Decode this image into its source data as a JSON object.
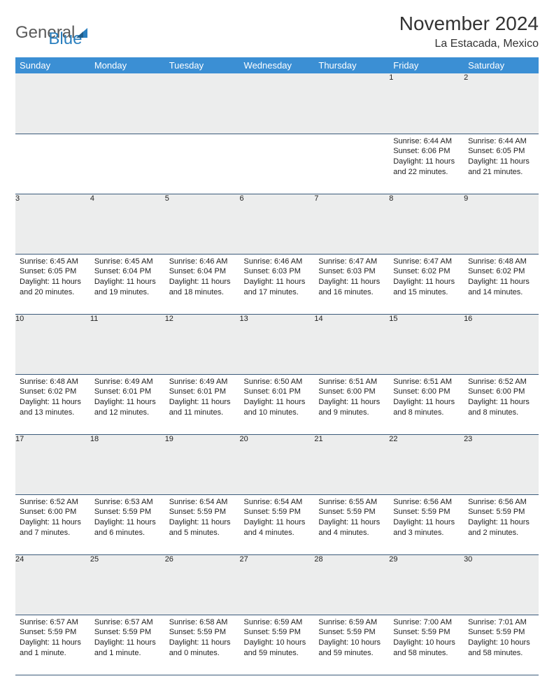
{
  "logo": {
    "text1": "General",
    "text2": "Blue"
  },
  "title": "November 2024",
  "subtitle": "La Estacada, Mexico",
  "colors": {
    "header_bg": "#3b8fd4",
    "header_text": "#ffffff",
    "daynum_bg": "#eceded",
    "border": "#3b5a7a",
    "logo_gray": "#5a5a5a",
    "logo_blue": "#2a7fbf"
  },
  "weekdays": [
    "Sunday",
    "Monday",
    "Tuesday",
    "Wednesday",
    "Thursday",
    "Friday",
    "Saturday"
  ],
  "weeks": [
    [
      {
        "n": "",
        "sr": "",
        "ss": "",
        "dl": ""
      },
      {
        "n": "",
        "sr": "",
        "ss": "",
        "dl": ""
      },
      {
        "n": "",
        "sr": "",
        "ss": "",
        "dl": ""
      },
      {
        "n": "",
        "sr": "",
        "ss": "",
        "dl": ""
      },
      {
        "n": "",
        "sr": "",
        "ss": "",
        "dl": ""
      },
      {
        "n": "1",
        "sr": "Sunrise: 6:44 AM",
        "ss": "Sunset: 6:06 PM",
        "dl": "Daylight: 11 hours and 22 minutes."
      },
      {
        "n": "2",
        "sr": "Sunrise: 6:44 AM",
        "ss": "Sunset: 6:05 PM",
        "dl": "Daylight: 11 hours and 21 minutes."
      }
    ],
    [
      {
        "n": "3",
        "sr": "Sunrise: 6:45 AM",
        "ss": "Sunset: 6:05 PM",
        "dl": "Daylight: 11 hours and 20 minutes."
      },
      {
        "n": "4",
        "sr": "Sunrise: 6:45 AM",
        "ss": "Sunset: 6:04 PM",
        "dl": "Daylight: 11 hours and 19 minutes."
      },
      {
        "n": "5",
        "sr": "Sunrise: 6:46 AM",
        "ss": "Sunset: 6:04 PM",
        "dl": "Daylight: 11 hours and 18 minutes."
      },
      {
        "n": "6",
        "sr": "Sunrise: 6:46 AM",
        "ss": "Sunset: 6:03 PM",
        "dl": "Daylight: 11 hours and 17 minutes."
      },
      {
        "n": "7",
        "sr": "Sunrise: 6:47 AM",
        "ss": "Sunset: 6:03 PM",
        "dl": "Daylight: 11 hours and 16 minutes."
      },
      {
        "n": "8",
        "sr": "Sunrise: 6:47 AM",
        "ss": "Sunset: 6:02 PM",
        "dl": "Daylight: 11 hours and 15 minutes."
      },
      {
        "n": "9",
        "sr": "Sunrise: 6:48 AM",
        "ss": "Sunset: 6:02 PM",
        "dl": "Daylight: 11 hours and 14 minutes."
      }
    ],
    [
      {
        "n": "10",
        "sr": "Sunrise: 6:48 AM",
        "ss": "Sunset: 6:02 PM",
        "dl": "Daylight: 11 hours and 13 minutes."
      },
      {
        "n": "11",
        "sr": "Sunrise: 6:49 AM",
        "ss": "Sunset: 6:01 PM",
        "dl": "Daylight: 11 hours and 12 minutes."
      },
      {
        "n": "12",
        "sr": "Sunrise: 6:49 AM",
        "ss": "Sunset: 6:01 PM",
        "dl": "Daylight: 11 hours and 11 minutes."
      },
      {
        "n": "13",
        "sr": "Sunrise: 6:50 AM",
        "ss": "Sunset: 6:01 PM",
        "dl": "Daylight: 11 hours and 10 minutes."
      },
      {
        "n": "14",
        "sr": "Sunrise: 6:51 AM",
        "ss": "Sunset: 6:00 PM",
        "dl": "Daylight: 11 hours and 9 minutes."
      },
      {
        "n": "15",
        "sr": "Sunrise: 6:51 AM",
        "ss": "Sunset: 6:00 PM",
        "dl": "Daylight: 11 hours and 8 minutes."
      },
      {
        "n": "16",
        "sr": "Sunrise: 6:52 AM",
        "ss": "Sunset: 6:00 PM",
        "dl": "Daylight: 11 hours and 8 minutes."
      }
    ],
    [
      {
        "n": "17",
        "sr": "Sunrise: 6:52 AM",
        "ss": "Sunset: 6:00 PM",
        "dl": "Daylight: 11 hours and 7 minutes."
      },
      {
        "n": "18",
        "sr": "Sunrise: 6:53 AM",
        "ss": "Sunset: 5:59 PM",
        "dl": "Daylight: 11 hours and 6 minutes."
      },
      {
        "n": "19",
        "sr": "Sunrise: 6:54 AM",
        "ss": "Sunset: 5:59 PM",
        "dl": "Daylight: 11 hours and 5 minutes."
      },
      {
        "n": "20",
        "sr": "Sunrise: 6:54 AM",
        "ss": "Sunset: 5:59 PM",
        "dl": "Daylight: 11 hours and 4 minutes."
      },
      {
        "n": "21",
        "sr": "Sunrise: 6:55 AM",
        "ss": "Sunset: 5:59 PM",
        "dl": "Daylight: 11 hours and 4 minutes."
      },
      {
        "n": "22",
        "sr": "Sunrise: 6:56 AM",
        "ss": "Sunset: 5:59 PM",
        "dl": "Daylight: 11 hours and 3 minutes."
      },
      {
        "n": "23",
        "sr": "Sunrise: 6:56 AM",
        "ss": "Sunset: 5:59 PM",
        "dl": "Daylight: 11 hours and 2 minutes."
      }
    ],
    [
      {
        "n": "24",
        "sr": "Sunrise: 6:57 AM",
        "ss": "Sunset: 5:59 PM",
        "dl": "Daylight: 11 hours and 1 minute."
      },
      {
        "n": "25",
        "sr": "Sunrise: 6:57 AM",
        "ss": "Sunset: 5:59 PM",
        "dl": "Daylight: 11 hours and 1 minute."
      },
      {
        "n": "26",
        "sr": "Sunrise: 6:58 AM",
        "ss": "Sunset: 5:59 PM",
        "dl": "Daylight: 11 hours and 0 minutes."
      },
      {
        "n": "27",
        "sr": "Sunrise: 6:59 AM",
        "ss": "Sunset: 5:59 PM",
        "dl": "Daylight: 10 hours and 59 minutes."
      },
      {
        "n": "28",
        "sr": "Sunrise: 6:59 AM",
        "ss": "Sunset: 5:59 PM",
        "dl": "Daylight: 10 hours and 59 minutes."
      },
      {
        "n": "29",
        "sr": "Sunrise: 7:00 AM",
        "ss": "Sunset: 5:59 PM",
        "dl": "Daylight: 10 hours and 58 minutes."
      },
      {
        "n": "30",
        "sr": "Sunrise: 7:01 AM",
        "ss": "Sunset: 5:59 PM",
        "dl": "Daylight: 10 hours and 58 minutes."
      }
    ]
  ]
}
